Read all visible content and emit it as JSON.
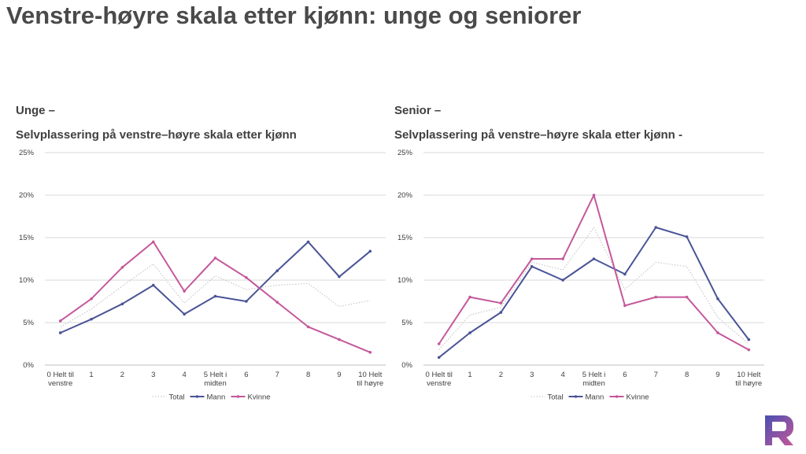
{
  "slide": {
    "title": "Venstre-høyre skala etter kjønn: unge og seniorer"
  },
  "colors": {
    "total": "#bfbfbf",
    "mann": "#4a5496",
    "kvinne": "#c4589a",
    "grid": "#d9d9d9",
    "axis": "#bfbfbf",
    "text": "#404040"
  },
  "chart_data": [
    {
      "type": "line",
      "title": "Unge –",
      "subtitle": "Selvplassering på venstre–høyre skala etter kjønn",
      "categories": [
        [
          "0 Helt til",
          "venstre"
        ],
        [
          "1"
        ],
        [
          "2"
        ],
        [
          "3"
        ],
        [
          "4"
        ],
        [
          "5 Helt i",
          "midten"
        ],
        [
          "6"
        ],
        [
          "7"
        ],
        [
          "8"
        ],
        [
          "9"
        ],
        [
          "10 Helt",
          "til høyre"
        ]
      ],
      "ylim": [
        0,
        25
      ],
      "yticks": [
        0,
        5,
        10,
        15,
        20,
        25
      ],
      "ytick_labels": [
        "0%",
        "5%",
        "10%",
        "15%",
        "20%",
        "25%"
      ],
      "grid": true,
      "legend_position": "bottom",
      "series": [
        {
          "name": "Total",
          "style": "dotted",
          "markers": false,
          "values": [
            4.5,
            6.6,
            9.3,
            11.9,
            7.3,
            10.5,
            8.9,
            9.4,
            9.6,
            6.9,
            7.6
          ]
        },
        {
          "name": "Mann",
          "style": "solid",
          "markers": true,
          "values": [
            3.8,
            5.4,
            7.2,
            9.4,
            6.0,
            8.1,
            7.5,
            11.1,
            14.5,
            10.4,
            13.4
          ]
        },
        {
          "name": "Kvinne",
          "style": "solid",
          "markers": true,
          "values": [
            5.2,
            7.8,
            11.5,
            14.5,
            8.7,
            12.6,
            10.3,
            7.4,
            4.5,
            3.0,
            1.5
          ]
        }
      ]
    },
    {
      "type": "line",
      "title": "Senior –",
      "subtitle": "Selvplassering på venstre–høyre skala etter kjønn -",
      "categories": [
        [
          "0 Helt til",
          "venstre"
        ],
        [
          "1"
        ],
        [
          "2"
        ],
        [
          "3"
        ],
        [
          "4"
        ],
        [
          "5 Helt i",
          "midten"
        ],
        [
          "6"
        ],
        [
          "7"
        ],
        [
          "8"
        ],
        [
          "9"
        ],
        [
          "10 Helt",
          "til høyre"
        ]
      ],
      "ylim": [
        0,
        25
      ],
      "yticks": [
        0,
        5,
        10,
        15,
        20,
        25
      ],
      "ytick_labels": [
        "0%",
        "5%",
        "10%",
        "15%",
        "20%",
        "25%"
      ],
      "grid": true,
      "legend_position": "bottom",
      "series": [
        {
          "name": "Total",
          "style": "dotted",
          "markers": false,
          "values": [
            1.8,
            5.9,
            6.8,
            12.1,
            11.2,
            16.2,
            8.9,
            12.1,
            11.6,
            5.6,
            2.5
          ]
        },
        {
          "name": "Mann",
          "style": "solid",
          "markers": true,
          "values": [
            0.9,
            3.8,
            6.2,
            11.6,
            10.0,
            12.5,
            10.7,
            16.2,
            15.1,
            7.8,
            3.0
          ]
        },
        {
          "name": "Kvinne",
          "style": "solid",
          "markers": true,
          "values": [
            2.5,
            8.0,
            7.3,
            12.5,
            12.5,
            20.0,
            7.0,
            8.0,
            8.0,
            3.8,
            1.8
          ]
        }
      ]
    }
  ],
  "logo": {
    "icon": "r-logo-icon"
  }
}
